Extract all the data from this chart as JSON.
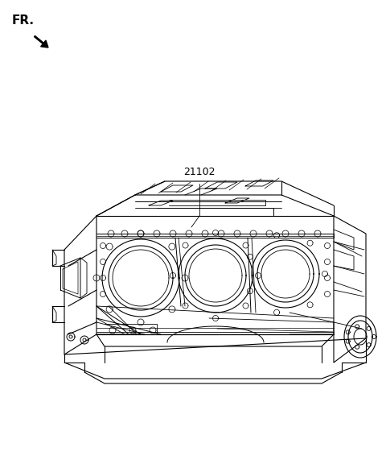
{
  "background_color": "#ffffff",
  "line_color": "#000000",
  "line_width": 0.8,
  "fr_label": "FR.",
  "part_number": "21102",
  "fig_width": 4.8,
  "fig_height": 5.71,
  "dpi": 100
}
